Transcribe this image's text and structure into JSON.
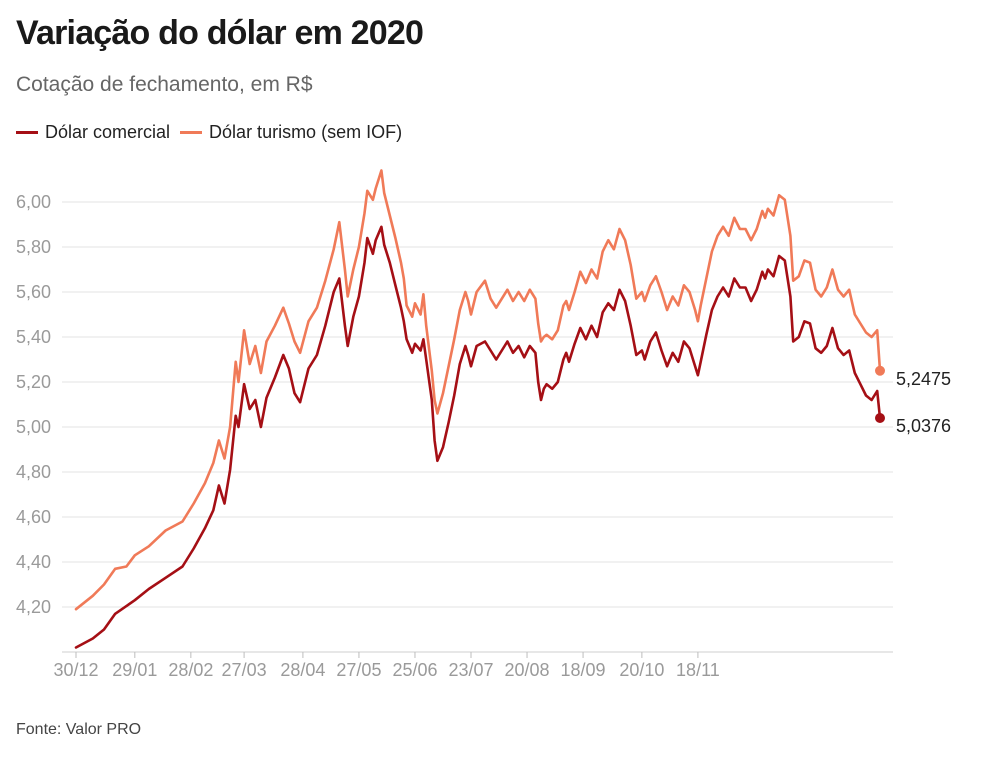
{
  "header": {
    "title": "Variação do dólar em 2020",
    "subtitle": "Cotação de fechamento, em R$"
  },
  "legend": [
    {
      "label": "Dólar comercial",
      "color": "#a50f15"
    },
    {
      "label": "Dólar turismo (sem IOF)",
      "color": "#f07a58"
    }
  ],
  "footer": {
    "source": "Fonte: Valor PRO"
  },
  "chart_data": {
    "type": "line",
    "title": "Variação do dólar em 2020",
    "subtitle": "Cotação de fechamento, em R$",
    "xlabel": "",
    "ylabel": "",
    "ylim": [
      4.0,
      6.15
    ],
    "yticks": [
      4.2,
      4.4,
      4.6,
      4.8,
      5.0,
      5.2,
      5.4,
      5.6,
      5.8,
      6.0
    ],
    "ytick_labels": [
      "4,20",
      "4,40",
      "4,60",
      "4,80",
      "5,00",
      "5,20",
      "5,40",
      "5,60",
      "5,80",
      "6,00"
    ],
    "xticks": [
      0,
      21,
      41,
      60,
      81,
      101,
      121,
      141,
      161,
      181,
      202,
      222
    ],
    "xtick_labels": [
      "30/12",
      "29/01",
      "28/02",
      "27/03",
      "28/04",
      "27/05",
      "25/06",
      "23/07",
      "20/08",
      "18/09",
      "20/10",
      "18/11"
    ],
    "x_count": 248,
    "grid": true,
    "legend_position": "top-left",
    "series": [
      {
        "name": "Dólar comercial",
        "color": "#a50f15",
        "end_label": "5,0376",
        "points": [
          [
            0,
            4.02
          ],
          [
            6,
            4.06
          ],
          [
            10,
            4.1
          ],
          [
            14,
            4.17
          ],
          [
            21,
            4.23
          ],
          [
            26,
            4.28
          ],
          [
            32,
            4.33
          ],
          [
            38,
            4.38
          ],
          [
            42,
            4.46
          ],
          [
            46,
            4.55
          ],
          [
            49,
            4.63
          ],
          [
            51,
            4.74
          ],
          [
            53,
            4.66
          ],
          [
            55,
            4.81
          ],
          [
            57,
            5.05
          ],
          [
            58,
            5.0
          ],
          [
            60,
            5.19
          ],
          [
            62,
            5.08
          ],
          [
            64,
            5.12
          ],
          [
            66,
            5.0
          ],
          [
            68,
            5.13
          ],
          [
            71,
            5.22
          ],
          [
            74,
            5.32
          ],
          [
            76,
            5.26
          ],
          [
            78,
            5.15
          ],
          [
            80,
            5.11
          ],
          [
            83,
            5.26
          ],
          [
            86,
            5.32
          ],
          [
            89,
            5.45
          ],
          [
            92,
            5.6
          ],
          [
            94,
            5.66
          ],
          [
            96,
            5.45
          ],
          [
            97,
            5.36
          ],
          [
            99,
            5.49
          ],
          [
            101,
            5.58
          ],
          [
            103,
            5.73
          ],
          [
            104,
            5.84
          ],
          [
            106,
            5.77
          ],
          [
            107,
            5.83
          ],
          [
            109,
            5.89
          ],
          [
            110,
            5.81
          ],
          [
            112,
            5.73
          ],
          [
            114,
            5.63
          ],
          [
            116,
            5.53
          ],
          [
            117,
            5.47
          ],
          [
            118,
            5.39
          ],
          [
            120,
            5.33
          ],
          [
            121,
            5.37
          ],
          [
            123,
            5.34
          ],
          [
            124,
            5.39
          ],
          [
            125,
            5.3
          ],
          [
            127,
            5.12
          ],
          [
            128,
            4.94
          ],
          [
            129,
            4.85
          ],
          [
            131,
            4.91
          ],
          [
            133,
            5.02
          ],
          [
            135,
            5.14
          ],
          [
            137,
            5.28
          ],
          [
            139,
            5.36
          ],
          [
            140,
            5.32
          ],
          [
            141,
            5.27
          ],
          [
            143,
            5.36
          ],
          [
            146,
            5.38
          ],
          [
            148,
            5.34
          ],
          [
            150,
            5.3
          ],
          [
            152,
            5.34
          ],
          [
            154,
            5.38
          ],
          [
            156,
            5.33
          ],
          [
            158,
            5.36
          ],
          [
            160,
            5.31
          ],
          [
            162,
            5.36
          ],
          [
            164,
            5.33
          ],
          [
            165,
            5.2
          ],
          [
            166,
            5.12
          ],
          [
            167,
            5.17
          ],
          [
            168,
            5.19
          ],
          [
            170,
            5.17
          ],
          [
            172,
            5.2
          ],
          [
            174,
            5.3
          ],
          [
            175,
            5.33
          ],
          [
            176,
            5.29
          ],
          [
            178,
            5.37
          ],
          [
            180,
            5.44
          ],
          [
            182,
            5.39
          ],
          [
            184,
            5.45
          ],
          [
            186,
            5.4
          ],
          [
            188,
            5.51
          ],
          [
            190,
            5.55
          ],
          [
            192,
            5.52
          ],
          [
            194,
            5.61
          ],
          [
            196,
            5.56
          ],
          [
            198,
            5.45
          ],
          [
            200,
            5.32
          ],
          [
            202,
            5.34
          ],
          [
            203,
            5.3
          ],
          [
            205,
            5.38
          ],
          [
            207,
            5.42
          ],
          [
            209,
            5.34
          ],
          [
            211,
            5.27
          ],
          [
            213,
            5.33
          ],
          [
            215,
            5.29
          ],
          [
            217,
            5.38
          ],
          [
            219,
            5.35
          ],
          [
            221,
            5.27
          ],
          [
            222,
            5.23
          ],
          [
            223,
            5.29
          ],
          [
            225,
            5.41
          ],
          [
            227,
            5.52
          ],
          [
            229,
            5.58
          ],
          [
            231,
            5.62
          ],
          [
            233,
            5.58
          ],
          [
            235,
            5.66
          ],
          [
            237,
            5.62
          ],
          [
            239,
            5.62
          ],
          [
            241,
            5.56
          ],
          [
            243,
            5.61
          ],
          [
            245,
            5.69
          ],
          [
            246,
            5.66
          ],
          [
            247,
            5.7
          ],
          [
            249,
            5.67
          ],
          [
            251,
            5.76
          ],
          [
            253,
            5.74
          ],
          [
            255,
            5.58
          ],
          [
            256,
            5.38
          ],
          [
            258,
            5.4
          ],
          [
            260,
            5.47
          ],
          [
            262,
            5.46
          ],
          [
            264,
            5.35
          ],
          [
            266,
            5.33
          ],
          [
            268,
            5.36
          ],
          [
            270,
            5.44
          ],
          [
            272,
            5.35
          ],
          [
            274,
            5.32
          ],
          [
            276,
            5.34
          ],
          [
            278,
            5.24
          ],
          [
            280,
            5.19
          ],
          [
            282,
            5.14
          ],
          [
            284,
            5.12
          ],
          [
            286,
            5.16
          ],
          [
            287,
            5.04
          ]
        ]
      },
      {
        "name": "Dólar turismo (sem IOF)",
        "color": "#f07a58",
        "end_label": "5,2475",
        "points": [
          [
            0,
            4.19
          ],
          [
            6,
            4.25
          ],
          [
            10,
            4.3
          ],
          [
            14,
            4.37
          ],
          [
            18,
            4.38
          ],
          [
            21,
            4.43
          ],
          [
            26,
            4.47
          ],
          [
            32,
            4.54
          ],
          [
            38,
            4.58
          ],
          [
            42,
            4.66
          ],
          [
            46,
            4.75
          ],
          [
            49,
            4.84
          ],
          [
            51,
            4.94
          ],
          [
            53,
            4.86
          ],
          [
            55,
            5.0
          ],
          [
            57,
            5.29
          ],
          [
            58,
            5.2
          ],
          [
            60,
            5.43
          ],
          [
            62,
            5.28
          ],
          [
            64,
            5.36
          ],
          [
            66,
            5.24
          ],
          [
            68,
            5.38
          ],
          [
            71,
            5.45
          ],
          [
            74,
            5.53
          ],
          [
            76,
            5.46
          ],
          [
            78,
            5.38
          ],
          [
            80,
            5.33
          ],
          [
            83,
            5.47
          ],
          [
            86,
            5.53
          ],
          [
            89,
            5.65
          ],
          [
            92,
            5.79
          ],
          [
            94,
            5.91
          ],
          [
            96,
            5.7
          ],
          [
            97,
            5.58
          ],
          [
            99,
            5.7
          ],
          [
            101,
            5.8
          ],
          [
            103,
            5.95
          ],
          [
            104,
            6.05
          ],
          [
            106,
            6.01
          ],
          [
            107,
            6.06
          ],
          [
            109,
            6.14
          ],
          [
            110,
            6.04
          ],
          [
            112,
            5.94
          ],
          [
            114,
            5.84
          ],
          [
            116,
            5.73
          ],
          [
            117,
            5.66
          ],
          [
            118,
            5.54
          ],
          [
            120,
            5.49
          ],
          [
            121,
            5.55
          ],
          [
            123,
            5.5
          ],
          [
            124,
            5.59
          ],
          [
            125,
            5.45
          ],
          [
            127,
            5.25
          ],
          [
            128,
            5.12
          ],
          [
            129,
            5.06
          ],
          [
            131,
            5.15
          ],
          [
            133,
            5.27
          ],
          [
            135,
            5.39
          ],
          [
            137,
            5.52
          ],
          [
            139,
            5.6
          ],
          [
            140,
            5.56
          ],
          [
            141,
            5.5
          ],
          [
            143,
            5.6
          ],
          [
            146,
            5.65
          ],
          [
            148,
            5.57
          ],
          [
            150,
            5.53
          ],
          [
            152,
            5.57
          ],
          [
            154,
            5.61
          ],
          [
            156,
            5.56
          ],
          [
            158,
            5.6
          ],
          [
            160,
            5.56
          ],
          [
            162,
            5.61
          ],
          [
            164,
            5.57
          ],
          [
            165,
            5.46
          ],
          [
            166,
            5.38
          ],
          [
            167,
            5.4
          ],
          [
            168,
            5.41
          ],
          [
            170,
            5.39
          ],
          [
            172,
            5.43
          ],
          [
            174,
            5.54
          ],
          [
            175,
            5.56
          ],
          [
            176,
            5.52
          ],
          [
            178,
            5.6
          ],
          [
            180,
            5.69
          ],
          [
            182,
            5.64
          ],
          [
            184,
            5.7
          ],
          [
            186,
            5.66
          ],
          [
            188,
            5.78
          ],
          [
            190,
            5.83
          ],
          [
            192,
            5.79
          ],
          [
            194,
            5.88
          ],
          [
            196,
            5.83
          ],
          [
            198,
            5.72
          ],
          [
            200,
            5.57
          ],
          [
            202,
            5.6
          ],
          [
            203,
            5.56
          ],
          [
            205,
            5.63
          ],
          [
            207,
            5.67
          ],
          [
            209,
            5.6
          ],
          [
            211,
            5.52
          ],
          [
            213,
            5.58
          ],
          [
            215,
            5.54
          ],
          [
            217,
            5.63
          ],
          [
            219,
            5.6
          ],
          [
            221,
            5.52
          ],
          [
            222,
            5.47
          ],
          [
            223,
            5.54
          ],
          [
            225,
            5.66
          ],
          [
            227,
            5.78
          ],
          [
            229,
            5.85
          ],
          [
            231,
            5.89
          ],
          [
            233,
            5.85
          ],
          [
            235,
            5.93
          ],
          [
            237,
            5.88
          ],
          [
            239,
            5.88
          ],
          [
            241,
            5.83
          ],
          [
            243,
            5.88
          ],
          [
            245,
            5.96
          ],
          [
            246,
            5.93
          ],
          [
            247,
            5.97
          ],
          [
            249,
            5.94
          ],
          [
            251,
            6.03
          ],
          [
            253,
            6.01
          ],
          [
            255,
            5.85
          ],
          [
            256,
            5.65
          ],
          [
            258,
            5.67
          ],
          [
            260,
            5.74
          ],
          [
            262,
            5.73
          ],
          [
            264,
            5.61
          ],
          [
            266,
            5.58
          ],
          [
            268,
            5.62
          ],
          [
            270,
            5.7
          ],
          [
            272,
            5.61
          ],
          [
            274,
            5.58
          ],
          [
            276,
            5.61
          ],
          [
            278,
            5.5
          ],
          [
            280,
            5.46
          ],
          [
            282,
            5.42
          ],
          [
            284,
            5.4
          ],
          [
            286,
            5.43
          ],
          [
            287,
            5.25
          ]
        ]
      }
    ]
  }
}
